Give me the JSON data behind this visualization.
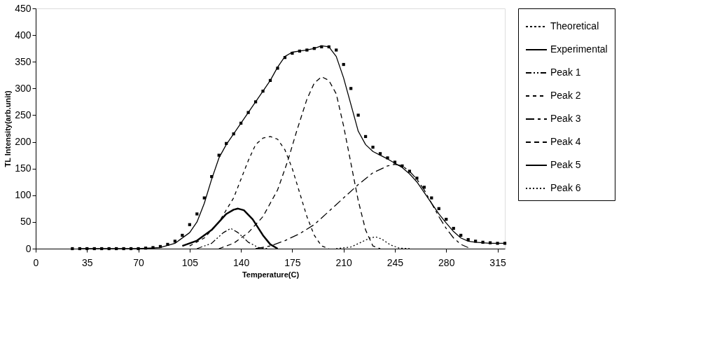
{
  "chart_data": {
    "type": "line",
    "xlabel": "Temperature(C)",
    "ylabel": "TL Intensity(arb.unit)",
    "xlim": [
      0,
      320
    ],
    "xticks": [
      0,
      35,
      70,
      105,
      140,
      175,
      210,
      245,
      280,
      315
    ],
    "ylim": [
      0,
      450
    ],
    "yticks": [
      0,
      50,
      100,
      150,
      200,
      250,
      300,
      350,
      400,
      450
    ],
    "grid": false,
    "legend": "right",
    "series": [
      {
        "name": "Theoretical",
        "type": "scatter",
        "marker": "square",
        "color": "#000000",
        "x": [
          25,
          30,
          35,
          40,
          45,
          50,
          55,
          60,
          65,
          70,
          75,
          80,
          85,
          90,
          95,
          100,
          105,
          110,
          115,
          120,
          125,
          130,
          135,
          140,
          145,
          150,
          155,
          160,
          165,
          170,
          175,
          180,
          185,
          190,
          195,
          200,
          205,
          210,
          215,
          220,
          225,
          230,
          235,
          240,
          245,
          250,
          255,
          260,
          265,
          270,
          275,
          280,
          285,
          290,
          295,
          300,
          305,
          310,
          315,
          320
        ],
        "values": [
          0,
          0,
          0,
          0,
          0,
          0,
          0,
          0,
          0,
          0,
          1,
          2,
          4,
          8,
          14,
          25,
          45,
          65,
          95,
          135,
          175,
          197,
          215,
          235,
          255,
          275,
          295,
          315,
          338,
          358,
          366,
          370,
          372,
          375,
          378,
          378,
          372,
          345,
          300,
          250,
          210,
          190,
          178,
          170,
          162,
          155,
          145,
          132,
          115,
          95,
          75,
          55,
          38,
          25,
          17,
          14,
          12,
          11,
          10,
          10
        ]
      },
      {
        "name": "Experimental",
        "line_style": "solid",
        "color": "#000000",
        "x": [
          30,
          70,
          85,
          95,
          105,
          110,
          115,
          120,
          125,
          130,
          135,
          140,
          145,
          150,
          155,
          160,
          165,
          170,
          175,
          180,
          185,
          190,
          195,
          200,
          205,
          210,
          215,
          220,
          225,
          230,
          235,
          240,
          245,
          250,
          255,
          260,
          265,
          270,
          275,
          280,
          285,
          290,
          295,
          300,
          310,
          320
        ],
        "values": [
          0,
          0,
          2,
          10,
          30,
          50,
          85,
          130,
          170,
          195,
          215,
          235,
          255,
          275,
          295,
          315,
          340,
          360,
          368,
          370,
          372,
          375,
          380,
          378,
          360,
          320,
          270,
          220,
          195,
          182,
          175,
          168,
          160,
          152,
          140,
          125,
          105,
          85,
          65,
          48,
          32,
          20,
          14,
          12,
          10,
          10
        ]
      },
      {
        "name": "Peak 1",
        "line_style": "dashed",
        "color": "#000000",
        "x": [
          110,
          120,
          128,
          133,
          138,
          145,
          152,
          158
        ],
        "values": [
          0,
          10,
          30,
          38,
          30,
          12,
          2,
          0
        ]
      },
      {
        "name": "Peak 2",
        "line_style": "dashed",
        "color": "#000000",
        "x": [
          105,
          115,
          125,
          135,
          140,
          145,
          150,
          155,
          160,
          165,
          170,
          175,
          180,
          185,
          190,
          195,
          200
        ],
        "values": [
          5,
          20,
          50,
          95,
          130,
          165,
          195,
          207,
          210,
          205,
          185,
          150,
          105,
          60,
          25,
          5,
          0
        ]
      },
      {
        "name": "Peak 3",
        "line_style": "dashed",
        "color": "#000000",
        "x": [
          150,
          160,
          170,
          180,
          190,
          200,
          210,
          220,
          230,
          240,
          245,
          250,
          255,
          260,
          265,
          270,
          275,
          280,
          285,
          290,
          295
        ],
        "values": [
          0,
          5,
          15,
          28,
          45,
          70,
          95,
          120,
          142,
          155,
          158,
          155,
          145,
          130,
          110,
          85,
          60,
          38,
          20,
          8,
          2
        ]
      },
      {
        "name": "Peak 4",
        "line_style": "dashed",
        "color": "#000000",
        "x": [
          125,
          135,
          145,
          155,
          165,
          172,
          178,
          185,
          190,
          195,
          200,
          205,
          210,
          215,
          220,
          225,
          230,
          235
        ],
        "values": [
          0,
          10,
          30,
          60,
          110,
          165,
          220,
          280,
          310,
          322,
          315,
          290,
          230,
          160,
          90,
          35,
          5,
          0
        ]
      },
      {
        "name": "Peak 5",
        "line_style": "solid",
        "color": "#000000",
        "x": [
          100,
          110,
          120,
          130,
          135,
          138,
          142,
          148,
          155,
          160,
          165
        ],
        "values": [
          5,
          15,
          35,
          65,
          73,
          75,
          72,
          55,
          25,
          8,
          0
        ]
      },
      {
        "name": "Peak 6",
        "line_style": "dotted",
        "color": "#000000",
        "x": [
          205,
          215,
          222,
          228,
          232,
          236,
          242,
          248,
          255
        ],
        "values": [
          0,
          3,
          12,
          20,
          22,
          18,
          7,
          1,
          0
        ]
      }
    ]
  }
}
